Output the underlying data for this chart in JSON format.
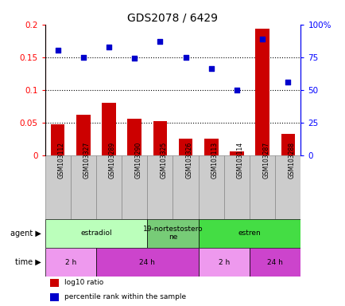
{
  "title": "GDS2078 / 6429",
  "samples": [
    "GSM103112",
    "GSM103327",
    "GSM103289",
    "GSM103290",
    "GSM103325",
    "GSM103326",
    "GSM103113",
    "GSM103114",
    "GSM103287",
    "GSM103288"
  ],
  "log10_ratio": [
    0.047,
    0.062,
    0.08,
    0.055,
    0.052,
    0.025,
    0.025,
    0.005,
    0.193,
    0.032
  ],
  "percentile": [
    0.16,
    0.15,
    0.165,
    0.148,
    0.174,
    0.149,
    0.132,
    0.099,
    0.178,
    0.112
  ],
  "bar_color": "#cc0000",
  "dot_color": "#0000cc",
  "left_ylim": [
    0,
    0.2
  ],
  "left_yticks": [
    0,
    0.05,
    0.1,
    0.15,
    0.2
  ],
  "left_yticklabels": [
    "0",
    "0.05",
    "0.1",
    "0.15",
    "0.2"
  ],
  "right_yticks": [
    0,
    0.05,
    0.1,
    0.15,
    0.2
  ],
  "right_yticklabels": [
    "0",
    "25",
    "50",
    "75",
    "100%"
  ],
  "dotted_lines": [
    0.05,
    0.1,
    0.15
  ],
  "agent_groups": [
    {
      "label": "estradiol",
      "start": 0,
      "end": 4,
      "color": "#bbffbb"
    },
    {
      "label": "19-nortestostero\nne",
      "start": 4,
      "end": 6,
      "color": "#77cc77"
    },
    {
      "label": "estren",
      "start": 6,
      "end": 10,
      "color": "#44dd44"
    }
  ],
  "time_groups": [
    {
      "label": "2 h",
      "start": 0,
      "end": 2,
      "color": "#ee99ee"
    },
    {
      "label": "24 h",
      "start": 2,
      "end": 6,
      "color": "#cc44cc"
    },
    {
      "label": "2 h",
      "start": 6,
      "end": 8,
      "color": "#ee99ee"
    },
    {
      "label": "24 h",
      "start": 8,
      "end": 10,
      "color": "#cc44cc"
    }
  ],
  "legend_items": [
    {
      "label": "log10 ratio",
      "color": "#cc0000"
    },
    {
      "label": "percentile rank within the sample",
      "color": "#0000cc"
    }
  ],
  "bg_color": "#ffffff",
  "sample_box_color": "#cccccc",
  "sample_box_edge": "#888888"
}
